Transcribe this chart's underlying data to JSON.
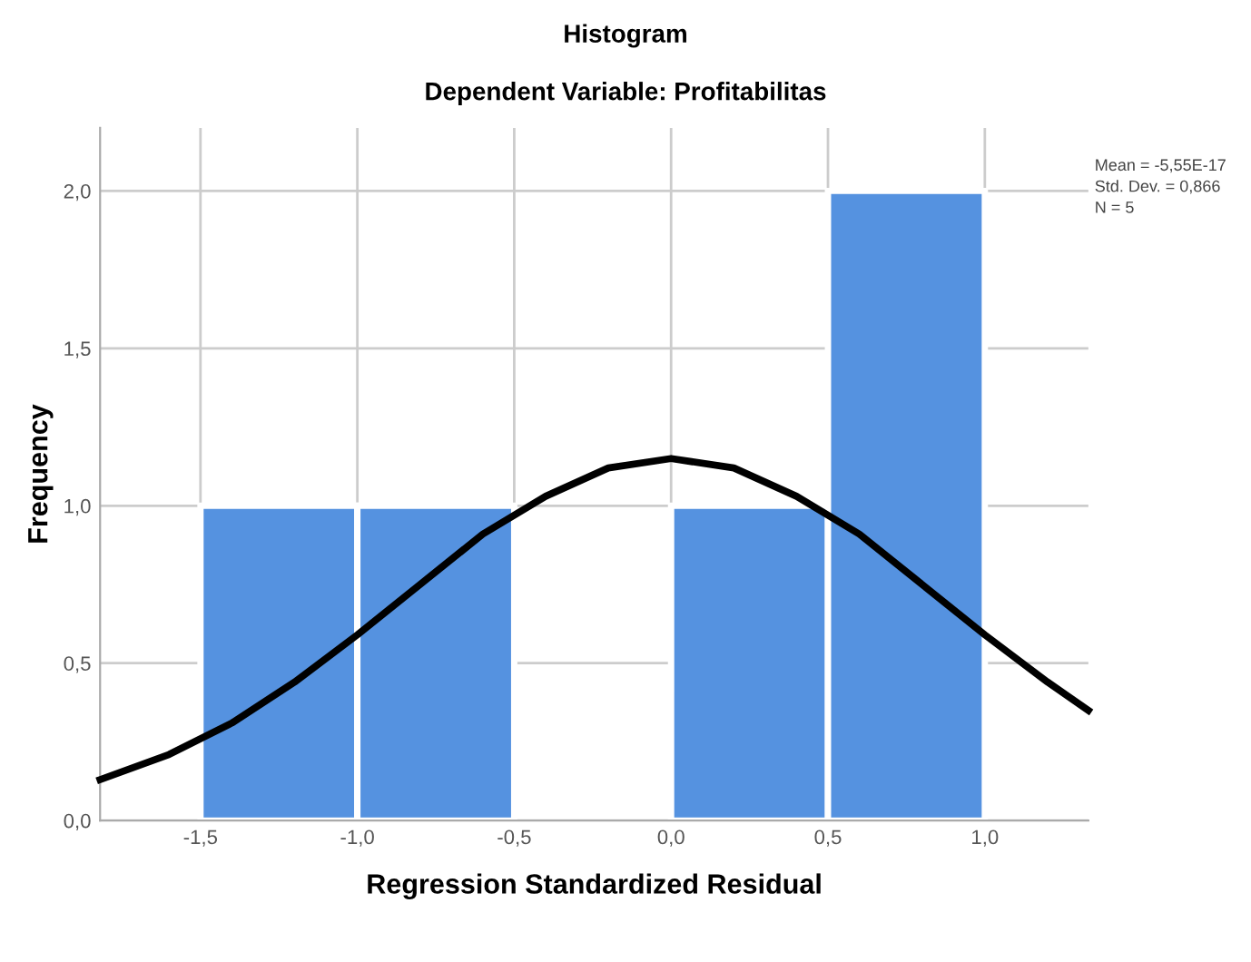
{
  "chart_data": {
    "type": "histogram",
    "title": "Histogram",
    "subtitle": "Dependent Variable: Profitabilitas",
    "xlabel": "Regression Standardized Residual",
    "ylabel": "Frequency",
    "bins": [
      -1.5,
      -1.0,
      -0.5,
      0.0,
      0.5,
      1.0
    ],
    "values": [
      1,
      1,
      0,
      1,
      2
    ],
    "color": "#5592e0",
    "series": [
      {
        "type": "line",
        "color": "#000000",
        "x": [
          -1.82,
          -1.6,
          -1.4,
          -1.2,
          -1.0,
          -0.8,
          -0.6,
          -0.4,
          -0.2,
          0.0,
          0.2,
          0.4,
          0.6,
          0.8,
          1.0,
          1.2,
          1.33
        ],
        "values": [
          0.13,
          0.21,
          0.31,
          0.44,
          0.59,
          0.75,
          0.91,
          1.03,
          1.12,
          1.15,
          1.12,
          1.03,
          0.91,
          0.75,
          0.59,
          0.44,
          0.35
        ]
      }
    ],
    "xlim": [
      -1.82,
      1.33
    ],
    "ylim": [
      0,
      2.2
    ],
    "xticks": [
      {
        "value": -1.5,
        "label": "-1,5"
      },
      {
        "value": -1.0,
        "label": "-1,0"
      },
      {
        "value": -0.5,
        "label": "-0,5"
      },
      {
        "value": 0.0,
        "label": "0,0"
      },
      {
        "value": 0.5,
        "label": "0,5"
      },
      {
        "value": 1.0,
        "label": "1,0"
      }
    ],
    "yticks": [
      {
        "value": 0.0,
        "label": "0,0"
      },
      {
        "value": 0.5,
        "label": "0,5"
      },
      {
        "value": 1.0,
        "label": "1,0"
      },
      {
        "value": 1.5,
        "label": "1,5"
      },
      {
        "value": 2.0,
        "label": "2,0"
      }
    ],
    "grid": true,
    "annotations": [
      "Mean = -5,55E-17",
      "Std. Dev. = 0,866",
      "N = 5"
    ]
  }
}
